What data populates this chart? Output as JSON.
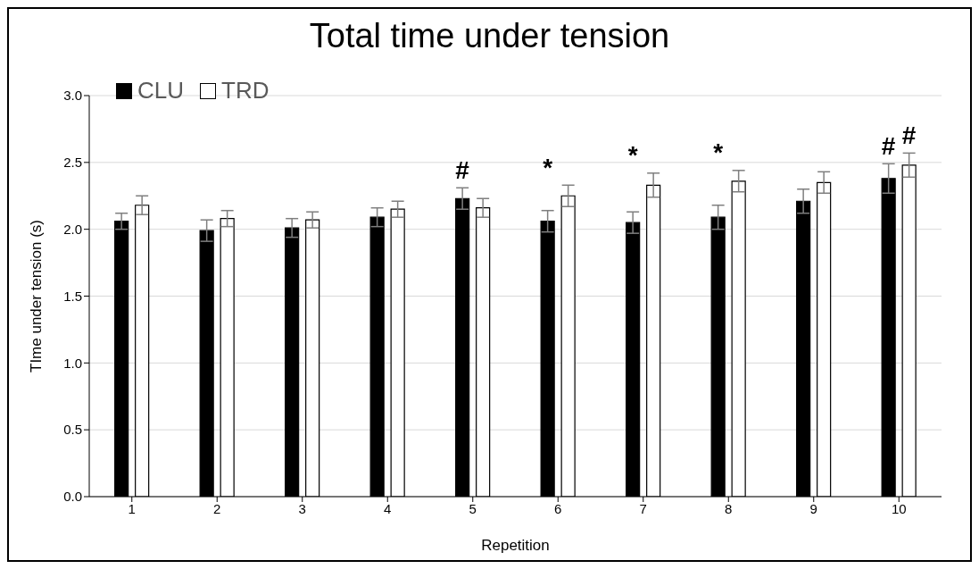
{
  "chart_data": {
    "type": "bar",
    "title": "Total time under tension",
    "xlabel": "Repetition",
    "ylabel": "TIme under tension (s)",
    "categories": [
      "1",
      "2",
      "3",
      "4",
      "5",
      "6",
      "7",
      "8",
      "9",
      "10"
    ],
    "series": [
      {
        "name": "CLU",
        "color": "#000000",
        "values": [
          2.06,
          1.99,
          2.01,
          2.09,
          2.23,
          2.06,
          2.05,
          2.09,
          2.21,
          2.38
        ],
        "errors": [
          0.06,
          0.08,
          0.07,
          0.07,
          0.08,
          0.08,
          0.08,
          0.09,
          0.09,
          0.11
        ]
      },
      {
        "name": "TRD",
        "color": "#ffffff",
        "values": [
          2.18,
          2.08,
          2.07,
          2.15,
          2.16,
          2.25,
          2.33,
          2.36,
          2.35,
          2.48
        ],
        "errors": [
          0.07,
          0.06,
          0.06,
          0.06,
          0.07,
          0.08,
          0.09,
          0.08,
          0.08,
          0.09
        ]
      }
    ],
    "ylim": [
      0,
      3
    ],
    "yticks": [
      {
        "value": 0,
        "label": "0.0"
      },
      {
        "value": 0.5,
        "label": "0.5"
      },
      {
        "value": 1,
        "label": "1.0"
      },
      {
        "value": 1.5,
        "label": "1.5"
      },
      {
        "value": 2,
        "label": "2.0"
      },
      {
        "value": 2.5,
        "label": "2.5"
      },
      {
        "value": 3,
        "label": "3.0"
      }
    ],
    "grid": "y",
    "legend": "top left",
    "annotations": [
      {
        "text": "#",
        "x": "5",
        "y": 2.23
      },
      {
        "text": "*",
        "x": "6",
        "y": 2.06
      },
      {
        "text": "*",
        "x": "7",
        "y": 2.05
      },
      {
        "text": "*",
        "x": "8",
        "y": 2.09
      },
      {
        "text": "#",
        "x": "10",
        "y": 2.38
      },
      {
        "text": "#",
        "x": "10",
        "y": 2.48
      }
    ]
  }
}
